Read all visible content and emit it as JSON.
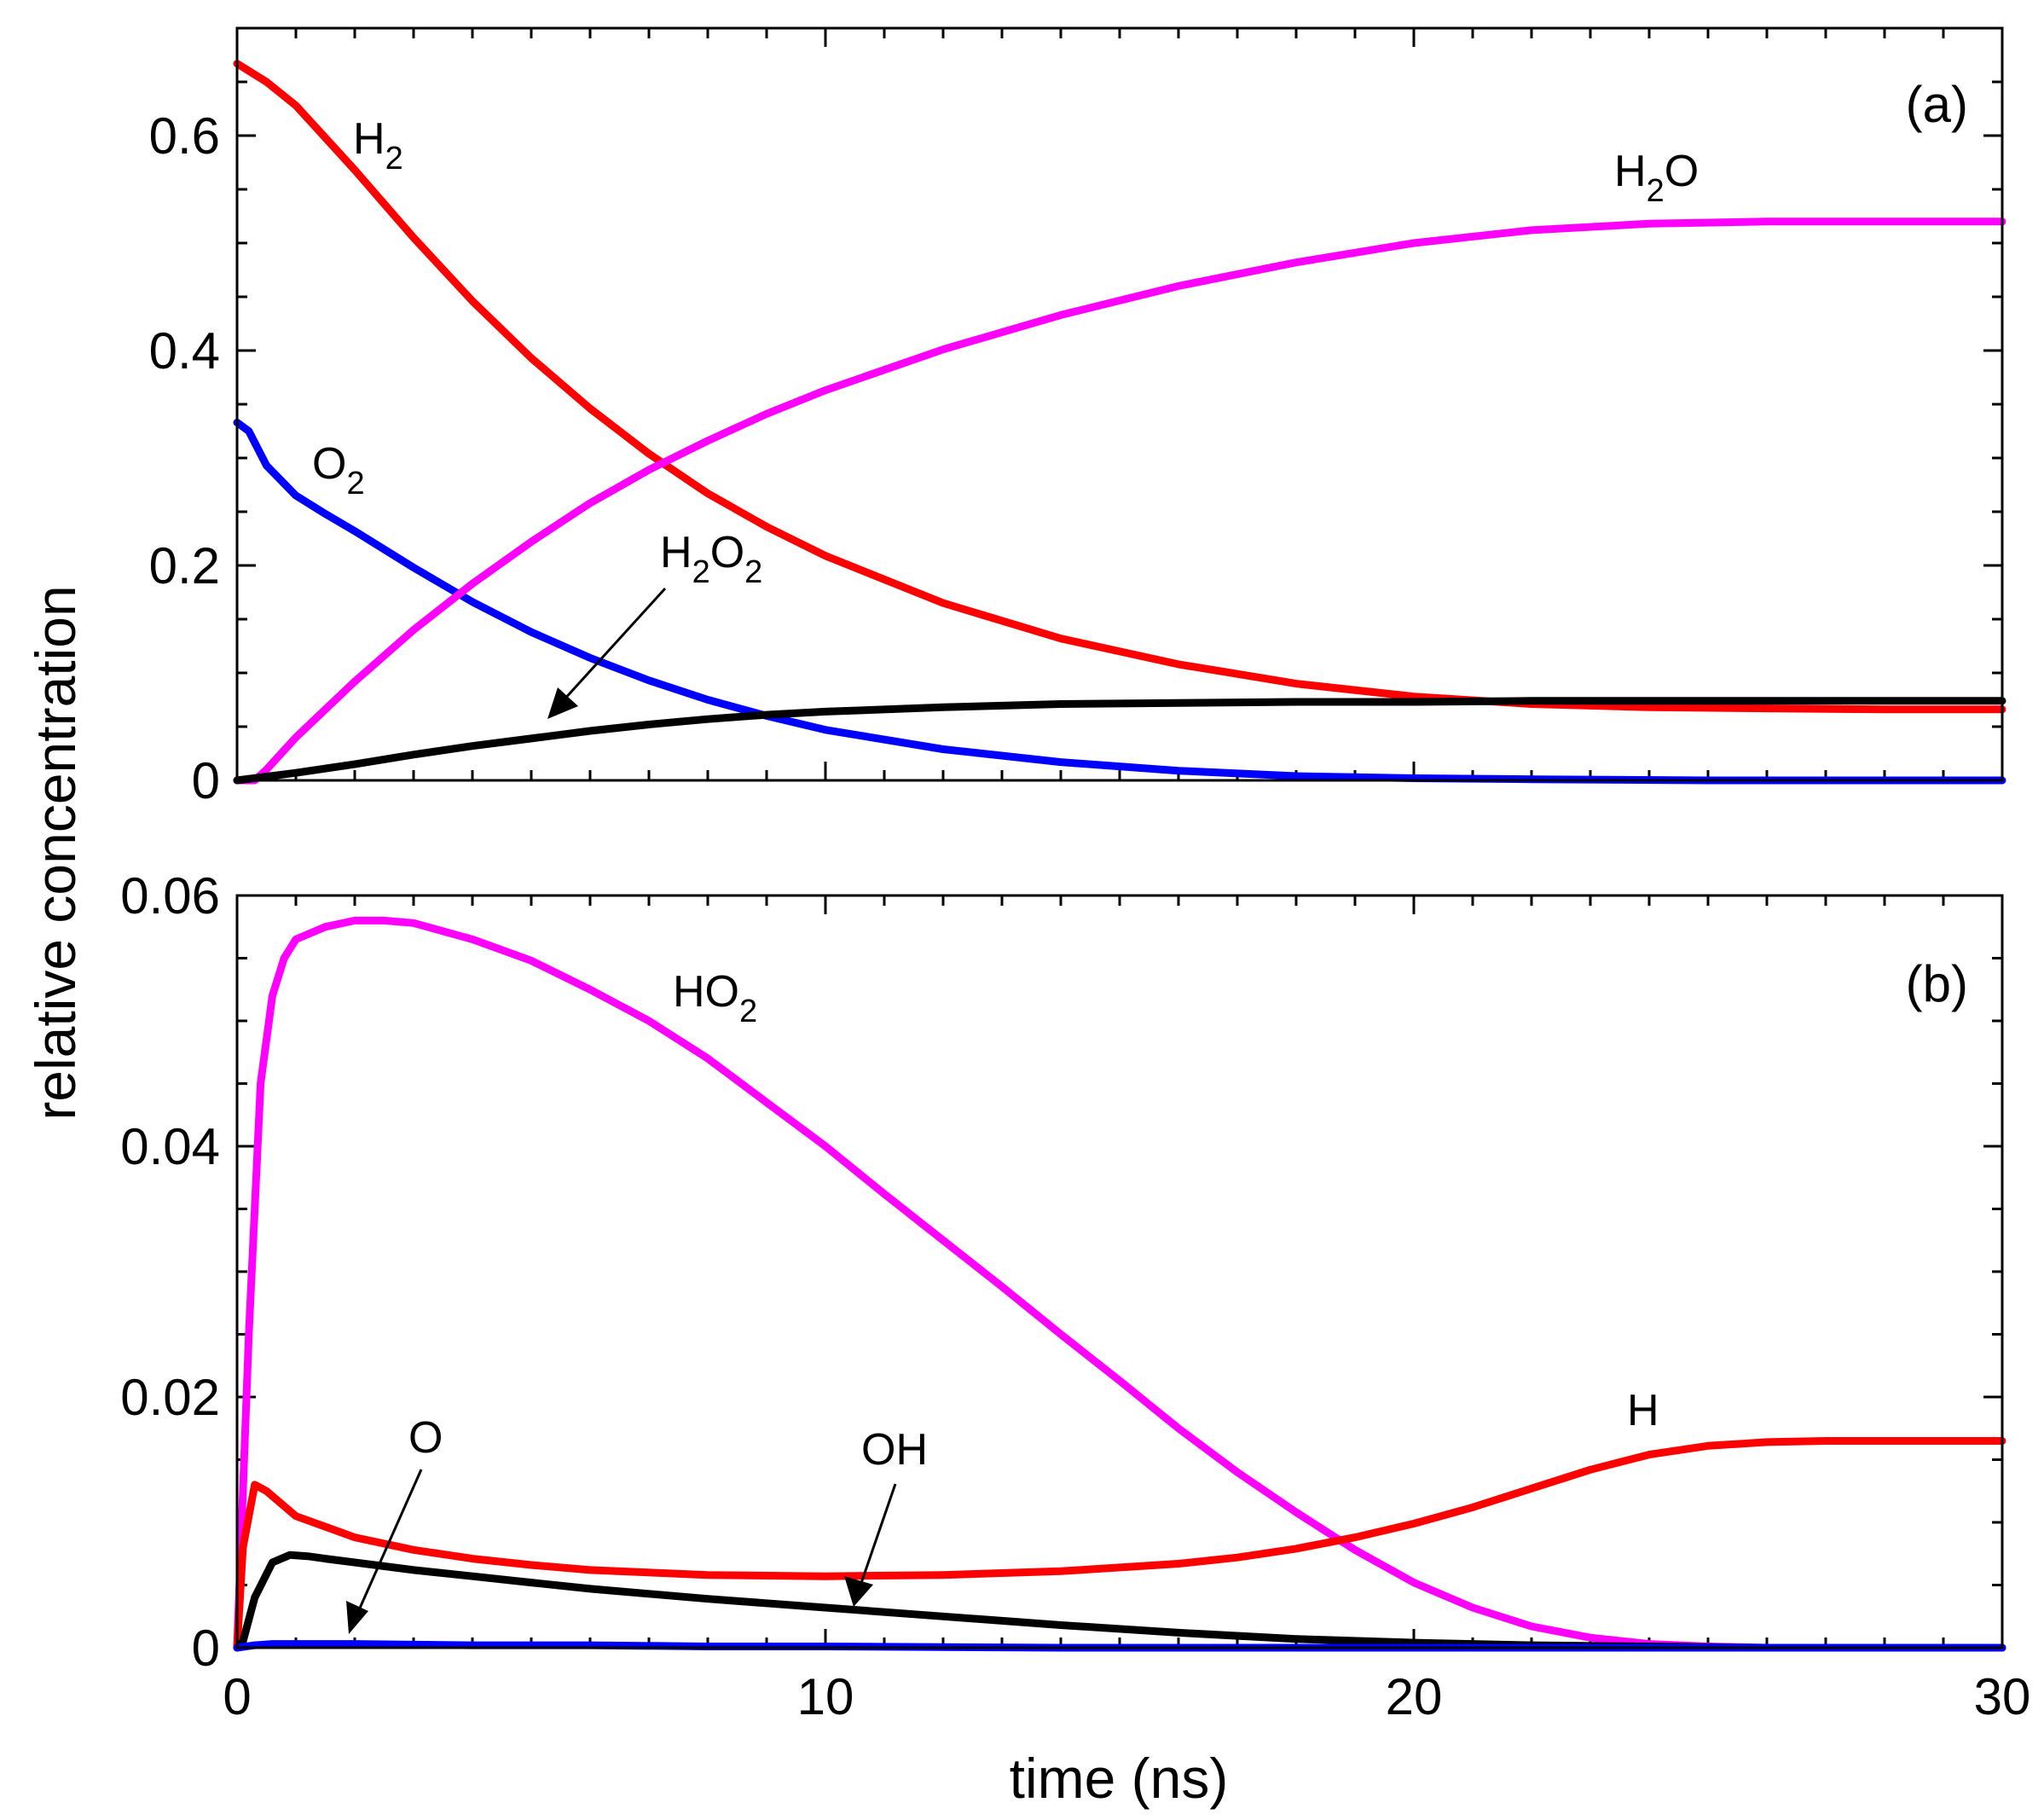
{
  "chart_data": [
    {
      "panel": "(a)",
      "type": "line",
      "xlabel": "time (ns)",
      "ylabel": "relative concentration",
      "xlim": [
        0,
        30
      ],
      "ylim": [
        0,
        0.7
      ],
      "yticks": [
        0,
        0.2,
        0.4,
        0.6
      ],
      "ytick_labels": [
        "0",
        "0.2",
        "0.4",
        "0.6"
      ],
      "series": [
        {
          "name": "H2",
          "label_main": "H",
          "label_sub": "2",
          "color": "#ff0000",
          "x": [
            0,
            0.5,
            1,
            2,
            3,
            4,
            5,
            6,
            7,
            8,
            9,
            10,
            12,
            14,
            16,
            18,
            20,
            22,
            24,
            26,
            28,
            30
          ],
          "y": [
            0.667,
            0.65,
            0.628,
            0.568,
            0.505,
            0.446,
            0.393,
            0.346,
            0.304,
            0.267,
            0.236,
            0.209,
            0.165,
            0.132,
            0.108,
            0.09,
            0.078,
            0.071,
            0.068,
            0.067,
            0.066,
            0.066
          ]
        },
        {
          "name": "O2",
          "label_main": "O",
          "label_sub": "2",
          "color": "#0000ff",
          "x": [
            0,
            0.2,
            0.5,
            1,
            1.5,
            2,
            3,
            4,
            5,
            6,
            7,
            8,
            9,
            10,
            12,
            14,
            16,
            18,
            20,
            22,
            25,
            30
          ],
          "y": [
            0.333,
            0.325,
            0.293,
            0.265,
            0.248,
            0.232,
            0.198,
            0.166,
            0.138,
            0.114,
            0.093,
            0.075,
            0.06,
            0.047,
            0.029,
            0.017,
            0.009,
            0.004,
            0.002,
            0.001,
            0.0,
            0.0
          ]
        },
        {
          "name": "H2O",
          "label_main": "H",
          "label_sub": "2",
          "label_tail": "O",
          "color": "#ff00ff",
          "x": [
            0,
            0.3,
            0.5,
            1,
            2,
            3,
            4,
            5,
            6,
            7,
            8,
            9,
            10,
            12,
            14,
            16,
            18,
            20,
            22,
            24,
            26,
            28,
            30
          ],
          "y": [
            0.0,
            0.0,
            0.01,
            0.04,
            0.092,
            0.14,
            0.183,
            0.222,
            0.258,
            0.289,
            0.316,
            0.341,
            0.363,
            0.401,
            0.433,
            0.46,
            0.482,
            0.5,
            0.512,
            0.518,
            0.52,
            0.52,
            0.52
          ]
        },
        {
          "name": "H2O2",
          "label_main": "H",
          "label_sub": "2",
          "label_tail": "O",
          "label_sub2": "2",
          "color": "#000000",
          "x": [
            0,
            1,
            2,
            3,
            4,
            5,
            6,
            7,
            8,
            9,
            10,
            12,
            14,
            16,
            18,
            20,
            22,
            25,
            30
          ],
          "y": [
            0.0,
            0.007,
            0.015,
            0.024,
            0.032,
            0.039,
            0.046,
            0.052,
            0.057,
            0.061,
            0.064,
            0.068,
            0.071,
            0.072,
            0.073,
            0.073,
            0.074,
            0.074,
            0.074
          ]
        }
      ]
    },
    {
      "panel": "(b)",
      "type": "line",
      "xlabel": "time (ns)",
      "ylabel": "relative concentration",
      "xlim": [
        0,
        30
      ],
      "ylim": [
        0,
        0.06
      ],
      "yticks": [
        0,
        0.02,
        0.04,
        0.06
      ],
      "ytick_labels": [
        "0",
        "0.02",
        "0.04",
        "0.06"
      ],
      "xticks": [
        0,
        10,
        20,
        30
      ],
      "xtick_labels": [
        "0",
        "10",
        "20",
        "30"
      ],
      "series": [
        {
          "name": "HO2",
          "label_main": "HO",
          "label_sub": "2",
          "color": "#ff00ff",
          "x": [
            0,
            0.2,
            0.4,
            0.6,
            0.8,
            1,
            1.5,
            2,
            2.5,
            3,
            4,
            5,
            6,
            7,
            8,
            9,
            10,
            11,
            12,
            13,
            14,
            15,
            16,
            17,
            18,
            19,
            20,
            21,
            22,
            23,
            24,
            25,
            26,
            27,
            28,
            30
          ],
          "y": [
            0.0,
            0.025,
            0.045,
            0.052,
            0.055,
            0.0565,
            0.0575,
            0.058,
            0.058,
            0.0578,
            0.0565,
            0.0548,
            0.0525,
            0.05,
            0.047,
            0.0435,
            0.04,
            0.0362,
            0.0325,
            0.0288,
            0.025,
            0.0213,
            0.0175,
            0.014,
            0.0108,
            0.0078,
            0.0052,
            0.0032,
            0.0017,
            0.0008,
            0.0003,
            0.0001,
            0.0,
            0.0,
            0.0,
            0.0
          ]
        },
        {
          "name": "H",
          "label_main": "H",
          "color": "#ff0000",
          "x": [
            0,
            0.1,
            0.3,
            0.5,
            1,
            2,
            3,
            4,
            5,
            6,
            8,
            10,
            12,
            14,
            16,
            17,
            18,
            19,
            20,
            21,
            22,
            23,
            24,
            25,
            26,
            27,
            28,
            30
          ],
          "y": [
            0.0,
            0.008,
            0.013,
            0.0125,
            0.0105,
            0.0088,
            0.0078,
            0.0071,
            0.0066,
            0.0062,
            0.0058,
            0.0057,
            0.0058,
            0.0061,
            0.0067,
            0.0072,
            0.0079,
            0.0088,
            0.0099,
            0.0112,
            0.0127,
            0.0142,
            0.0154,
            0.0161,
            0.0164,
            0.0165,
            0.0165,
            0.0165
          ]
        },
        {
          "name": "OH",
          "label_main": "OH",
          "color": "#000000",
          "x": [
            0,
            0.1,
            0.3,
            0.6,
            0.9,
            1.2,
            1.5,
            2,
            3,
            4,
            5,
            6,
            8,
            10,
            12,
            14,
            16,
            18,
            20,
            22,
            24,
            26,
            30
          ],
          "y": [
            0.0,
            0.0005,
            0.004,
            0.0068,
            0.0074,
            0.0073,
            0.0071,
            0.0068,
            0.0062,
            0.0057,
            0.0052,
            0.0047,
            0.0039,
            0.0032,
            0.0025,
            0.0018,
            0.0012,
            0.0007,
            0.0004,
            0.0002,
            0.0001,
            0.0,
            0.0
          ]
        },
        {
          "name": "O",
          "label_main": "O",
          "color": "#0000ff",
          "x": [
            0,
            0.3,
            0.6,
            1,
            2,
            4,
            6,
            8,
            10,
            14,
            20,
            30
          ],
          "y": [
            0.0,
            0.0002,
            0.0003,
            0.0003,
            0.0003,
            0.0002,
            0.0002,
            0.0001,
            0.0001,
            0.0,
            0.0,
            0.0
          ]
        }
      ]
    }
  ]
}
